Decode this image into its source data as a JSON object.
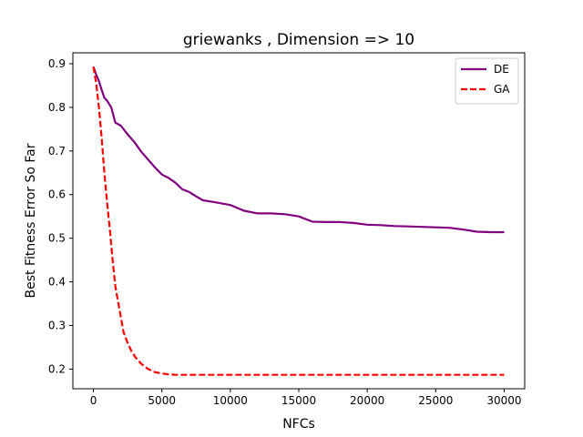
{
  "chart_data": {
    "type": "line",
    "title": "griewanks , Dimension => 10",
    "xlabel": "NFCs",
    "ylabel": "Best Fitness Error So Far",
    "xlim": [
      -1500,
      31500
    ],
    "ylim": [
      0.155,
      0.925
    ],
    "xticks": [
      0,
      5000,
      10000,
      15000,
      20000,
      25000,
      30000
    ],
    "yticks": [
      0.2,
      0.3,
      0.4,
      0.5,
      0.6,
      0.7,
      0.8,
      0.9
    ],
    "xtick_labels": [
      "0",
      "5000",
      "10000",
      "15000",
      "20000",
      "25000",
      "30000"
    ],
    "ytick_labels": [
      "0.2",
      "0.3",
      "0.4",
      "0.5",
      "0.6",
      "0.7",
      "0.8",
      "0.9"
    ],
    "grid": false,
    "legend_position": "top-right",
    "series": [
      {
        "name": "DE",
        "color": "#800080",
        "line_style": "solid",
        "x": [
          0,
          200,
          400,
          600,
          800,
          1000,
          1300,
          1600,
          2000,
          2500,
          3000,
          3500,
          4000,
          4500,
          5000,
          5500,
          6000,
          6500,
          7000,
          7500,
          8000,
          9000,
          10000,
          11000,
          12000,
          13000,
          14000,
          15000,
          16000,
          17000,
          18000,
          19000,
          20000,
          21000,
          22000,
          23000,
          24000,
          25000,
          26000,
          27000,
          28000,
          29000,
          30000
        ],
        "values": [
          0.893,
          0.875,
          0.86,
          0.84,
          0.822,
          0.815,
          0.8,
          0.765,
          0.758,
          0.738,
          0.72,
          0.698,
          0.68,
          0.662,
          0.646,
          0.638,
          0.627,
          0.612,
          0.606,
          0.596,
          0.587,
          0.582,
          0.576,
          0.563,
          0.557,
          0.557,
          0.555,
          0.55,
          0.538,
          0.537,
          0.537,
          0.535,
          0.531,
          0.53,
          0.528,
          0.527,
          0.526,
          0.525,
          0.524,
          0.52,
          0.515,
          0.514,
          0.514
        ]
      },
      {
        "name": "GA",
        "color": "#ff0000",
        "line_style": "dashed",
        "x": [
          0,
          200,
          400,
          600,
          800,
          1000,
          1200,
          1400,
          1600,
          1800,
          2000,
          2200,
          2500,
          2800,
          3100,
          3500,
          4000,
          4500,
          5000,
          5500,
          6000,
          7000,
          10000,
          15000,
          20000,
          25000,
          30000
        ],
        "values": [
          0.893,
          0.855,
          0.8,
          0.73,
          0.65,
          0.58,
          0.52,
          0.45,
          0.39,
          0.355,
          0.32,
          0.285,
          0.26,
          0.24,
          0.226,
          0.212,
          0.2,
          0.193,
          0.19,
          0.188,
          0.187,
          0.187,
          0.187,
          0.187,
          0.187,
          0.187,
          0.187
        ]
      }
    ]
  }
}
